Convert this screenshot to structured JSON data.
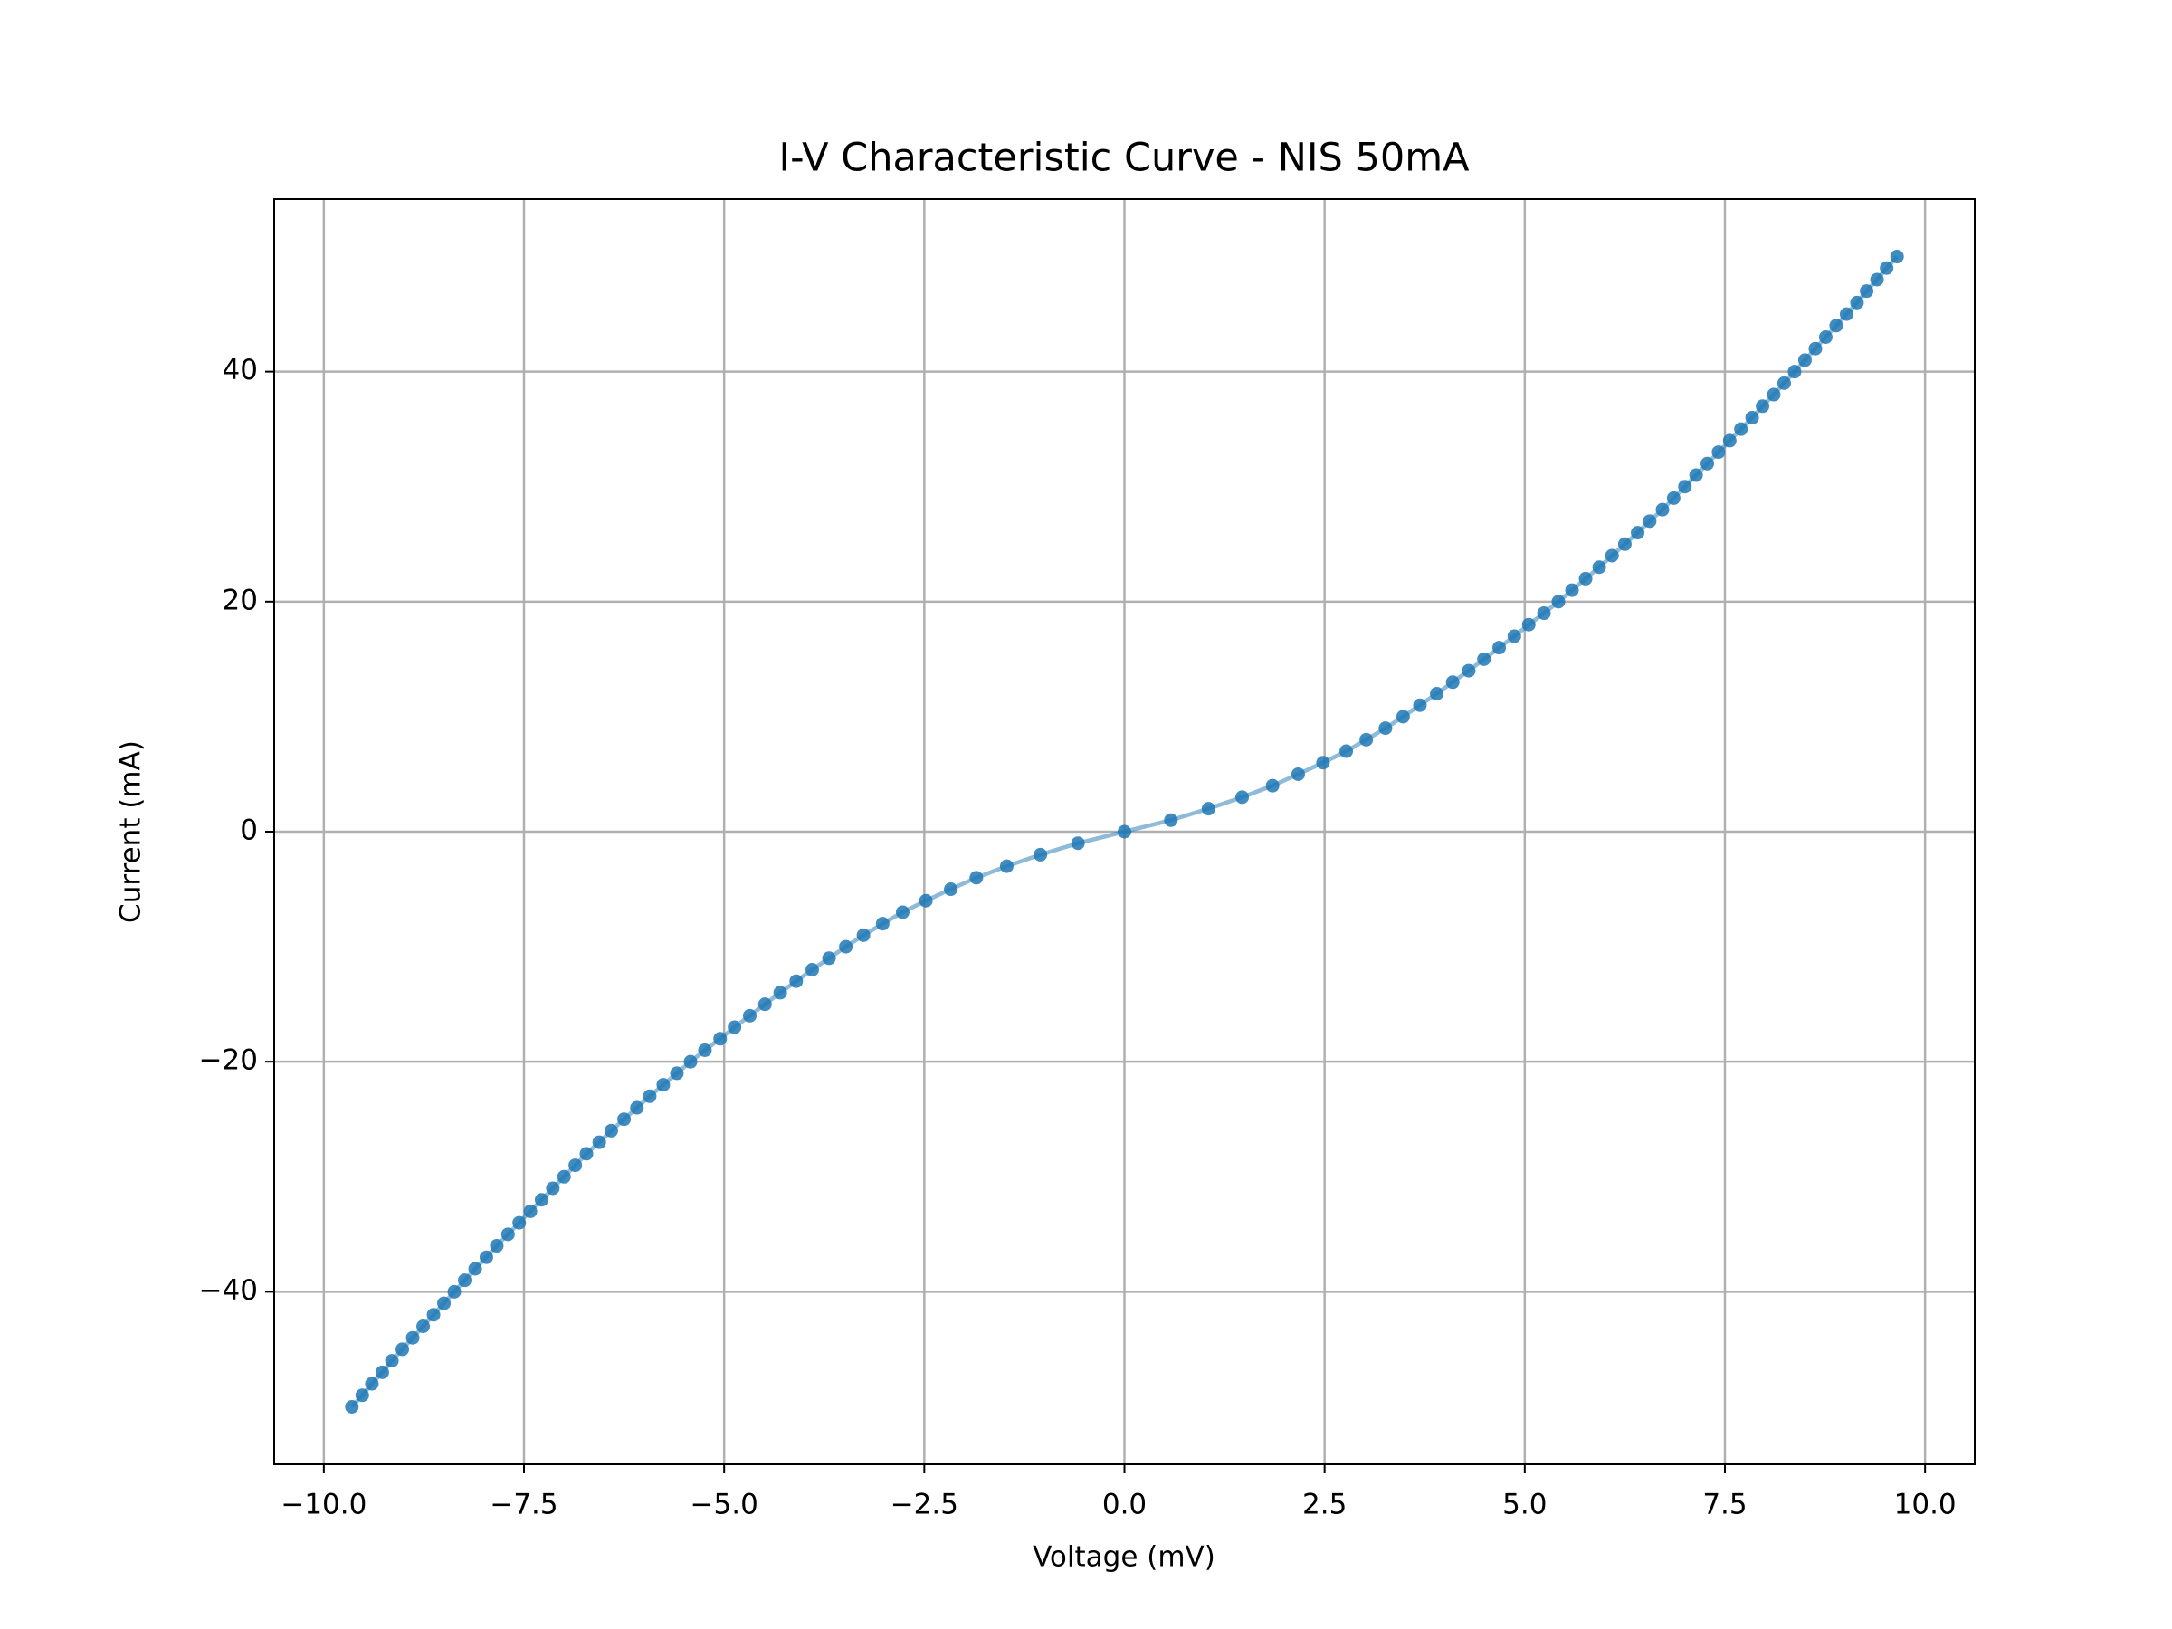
{
  "chart_data": {
    "type": "line",
    "title": "I-V Characteristic Curve - NIS 50mA",
    "x_label": "Voltage (mV)",
    "y_label": "Current (mA)",
    "x": [
      -9.65,
      -9.52,
      -9.4,
      -9.27,
      -9.15,
      -9.02,
      -8.89,
      -8.76,
      -8.63,
      -8.5,
      -8.37,
      -8.24,
      -8.11,
      -7.97,
      -7.84,
      -7.7,
      -7.56,
      -7.42,
      -7.28,
      -7.14,
      -7.0,
      -6.86,
      -6.72,
      -6.56,
      -6.41,
      -6.25,
      -6.09,
      -5.93,
      -5.76,
      -5.59,
      -5.42,
      -5.24,
      -5.05,
      -4.87,
      -4.68,
      -4.49,
      -4.3,
      -4.1,
      -3.9,
      -3.69,
      -3.48,
      -3.26,
      -3.02,
      -2.77,
      -2.48,
      -2.17,
      -1.85,
      -1.47,
      -1.05,
      -0.58,
      0,
      0.58,
      1.05,
      1.47,
      1.85,
      2.17,
      2.48,
      2.77,
      3.02,
      3.26,
      3.48,
      3.69,
      3.9,
      4.1,
      4.3,
      4.49,
      4.68,
      4.87,
      5.05,
      5.24,
      5.42,
      5.59,
      5.76,
      5.93,
      6.09,
      6.25,
      6.41,
      6.56,
      6.72,
      6.86,
      7.0,
      7.14,
      7.28,
      7.42,
      7.56,
      7.7,
      7.84,
      7.97,
      8.11,
      8.24,
      8.37,
      8.5,
      8.63,
      8.76,
      8.89,
      9.02,
      9.15,
      9.27,
      9.4,
      9.52,
      9.65
    ],
    "series": [
      {
        "color": "#1f77b4",
        "values": [
          -50,
          -49,
          -48,
          -47,
          -46,
          -45,
          -44,
          -43,
          -42,
          -41,
          -40,
          -39,
          -38,
          -37,
          -36,
          -35,
          -34,
          -33,
          -32,
          -31,
          -30,
          -29,
          -28,
          -27,
          -26,
          -25,
          -24,
          -23,
          -22,
          -21,
          -20,
          -19,
          -18,
          -17,
          -16,
          -15,
          -14,
          -13,
          -12,
          -11,
          -10,
          -9,
          -8,
          -7,
          -6,
          -5,
          -4,
          -3,
          -2,
          -1,
          0,
          1,
          2,
          3,
          4,
          5,
          6,
          7,
          8,
          9,
          10,
          11,
          12,
          13,
          14,
          15,
          16,
          17,
          18,
          19,
          20,
          21,
          22,
          23,
          24,
          25,
          26,
          27,
          28,
          29,
          30,
          31,
          32,
          33,
          34,
          35,
          36,
          37,
          38,
          39,
          40,
          41,
          42,
          43,
          44,
          45,
          46,
          47,
          48,
          49,
          50
        ]
      }
    ],
    "xlim": [
      -10.62,
      10.62
    ],
    "xticks": [
      {
        "value": -10,
        "label": "−10.0"
      },
      {
        "value": -7.5,
        "label": "−7.5"
      },
      {
        "value": -5,
        "label": "−5.0"
      },
      {
        "value": -2.5,
        "label": "−2.5"
      },
      {
        "value": 0,
        "label": "0.0"
      },
      {
        "value": 2.5,
        "label": "2.5"
      },
      {
        "value": 5,
        "label": "5.0"
      },
      {
        "value": 7.5,
        "label": "7.5"
      },
      {
        "value": 10,
        "label": "10.0"
      }
    ],
    "ylim": [
      -55,
      55
    ],
    "yticks": [
      {
        "value": -40,
        "label": "−40"
      },
      {
        "value": -20,
        "label": "−20"
      },
      0,
      20,
      40
    ],
    "grid": true
  }
}
